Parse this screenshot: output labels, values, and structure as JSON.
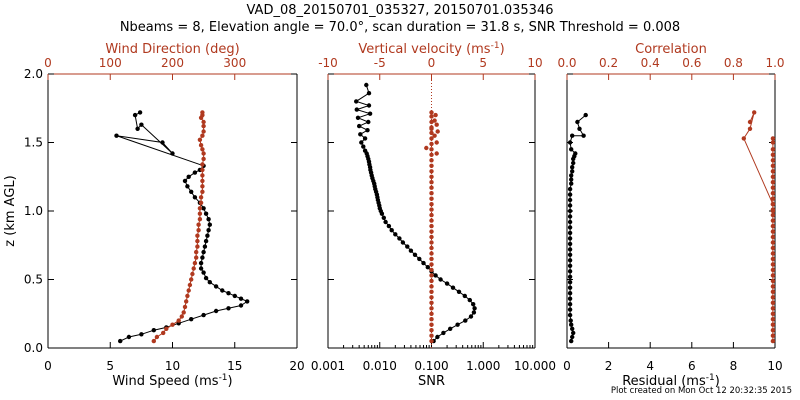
{
  "header": {
    "title": "VAD_08_20150701_035327, 20150701.035346",
    "subtitle": "Nbeams = 8, Elevation angle = 70.0°, scan duration = 31.8 s, SNR Threshold = 0.008"
  },
  "footer": {
    "created": "Plot created on Mon Oct 12 20:32:35 2015"
  },
  "colors": {
    "primary": "#000000",
    "secondary": "#b0391f"
  },
  "chart_data": [
    {
      "type": "scatter",
      "ylabel": "z (km AGL)",
      "ylim": [
        0,
        2
      ],
      "yticks": [
        "0.0",
        "0.5",
        "1.0",
        "1.5",
        "2.0"
      ],
      "bottom_axis": {
        "label": "Wind Speed (ms",
        "label_sup": "-1",
        "label_end": ")",
        "ticks": [
          "0",
          "5",
          "10",
          "15",
          "20"
        ],
        "lim": [
          0,
          20
        ],
        "scale": "linear"
      },
      "top_axis": {
        "label": "Wind Direction (deg)",
        "label_sup": "",
        "label_end": "",
        "ticks": [
          "0",
          "100",
          "200",
          "300"
        ],
        "lim": [
          0,
          400
        ],
        "scale": "linear"
      },
      "series": [
        {
          "axis": "bottom",
          "color": "black",
          "connected": true,
          "x": [
            5.8,
            6.5,
            7.5,
            8.5,
            9.5,
            10.5,
            11.5,
            12.5,
            13.5,
            14.5,
            15.5,
            16,
            15.5,
            15,
            14.5,
            14,
            13.5,
            13,
            12.7,
            12.5,
            12.3,
            12.3,
            12.4,
            12.5,
            12.6,
            12.7,
            12.8,
            12.9,
            13,
            12.9,
            12.7,
            12.5,
            12.2,
            11.8,
            11.5,
            11.2,
            11,
            11.3,
            11.8,
            12.2,
            12.5,
            5.5,
            9.2,
            10,
            7.5,
            7.2,
            7.0,
            7.4
          ],
          "y": [
            0.05,
            0.08,
            0.1,
            0.13,
            0.15,
            0.18,
            0.21,
            0.24,
            0.27,
            0.29,
            0.31,
            0.34,
            0.36,
            0.38,
            0.4,
            0.42,
            0.45,
            0.48,
            0.51,
            0.55,
            0.58,
            0.62,
            0.66,
            0.7,
            0.74,
            0.78,
            0.82,
            0.86,
            0.9,
            0.94,
            0.98,
            1.02,
            1.06,
            1.1,
            1.14,
            1.18,
            1.22,
            1.25,
            1.28,
            1.3,
            1.33,
            1.55,
            1.5,
            1.42,
            1.63,
            1.6,
            1.7,
            1.72
          ]
        },
        {
          "axis": "top",
          "color": "secondary",
          "connected": true,
          "x": [
            170,
            175,
            185,
            190,
            200,
            210,
            215,
            218,
            220,
            222,
            224,
            226,
            228,
            230,
            232,
            234,
            236,
            238,
            238,
            240,
            240,
            240,
            242,
            242,
            244,
            244,
            244,
            246,
            246,
            248,
            248,
            248,
            248,
            248,
            248,
            250,
            250,
            248,
            246,
            244,
            248,
            250,
            250,
            250,
            246,
            248,
            248
          ],
          "y": [
            0.05,
            0.08,
            0.11,
            0.14,
            0.17,
            0.2,
            0.23,
            0.26,
            0.3,
            0.34,
            0.38,
            0.42,
            0.46,
            0.5,
            0.54,
            0.58,
            0.62,
            0.66,
            0.7,
            0.74,
            0.78,
            0.82,
            0.86,
            0.9,
            0.94,
            0.98,
            1.02,
            1.06,
            1.1,
            1.14,
            1.18,
            1.22,
            1.26,
            1.3,
            1.34,
            1.38,
            1.42,
            1.45,
            1.48,
            1.52,
            1.55,
            1.58,
            1.62,
            1.65,
            1.68,
            1.7,
            1.72
          ]
        }
      ]
    },
    {
      "type": "scatter",
      "ylim": [
        0,
        2
      ],
      "bottom_axis": {
        "label": "SNR",
        "label_sup": "",
        "label_end": "",
        "ticks": [
          "0.001",
          "0.010",
          "0.100",
          "1.000",
          "10.000"
        ],
        "lim": [
          0.001,
          10
        ],
        "scale": "log"
      },
      "top_axis": {
        "label": "Vertical velocity (ms",
        "label_sup": "-1",
        "label_end": ")",
        "ticks": [
          "-10",
          "-5",
          "0",
          "5",
          "10"
        ],
        "lim": [
          -10,
          10
        ],
        "scale": "linear",
        "zero_line": true
      },
      "series": [
        {
          "axis": "bottom",
          "color": "black",
          "connected": true,
          "x": [
            0.11,
            0.13,
            0.17,
            0.23,
            0.32,
            0.45,
            0.58,
            0.66,
            0.68,
            0.64,
            0.55,
            0.44,
            0.34,
            0.26,
            0.2,
            0.15,
            0.12,
            0.1,
            0.085,
            0.07,
            0.058,
            0.048,
            0.04,
            0.034,
            0.028,
            0.024,
            0.02,
            0.017,
            0.015,
            0.013,
            0.012,
            0.011,
            0.0105,
            0.01,
            0.0098,
            0.0095,
            0.0092,
            0.009,
            0.0088,
            0.0085,
            0.0082,
            0.008,
            0.0078,
            0.0075,
            0.0072,
            0.007,
            0.0068,
            0.0066,
            0.0065,
            0.0063,
            0.0062,
            0.006,
            0.0058,
            0.0056,
            0.0052,
            0.0048,
            0.0044,
            0.0052,
            0.0042,
            0.0058,
            0.004,
            0.006,
            0.0038,
            0.0065,
            0.0036,
            0.0062,
            0.0035,
            0.0062,
            0.0055
          ],
          "y": [
            0.05,
            0.08,
            0.11,
            0.14,
            0.17,
            0.2,
            0.23,
            0.26,
            0.29,
            0.32,
            0.35,
            0.38,
            0.41,
            0.44,
            0.47,
            0.5,
            0.53,
            0.56,
            0.59,
            0.62,
            0.65,
            0.68,
            0.71,
            0.74,
            0.77,
            0.8,
            0.83,
            0.86,
            0.89,
            0.92,
            0.95,
            0.98,
            1.0,
            1.02,
            1.04,
            1.06,
            1.08,
            1.1,
            1.12,
            1.14,
            1.16,
            1.18,
            1.2,
            1.22,
            1.24,
            1.26,
            1.28,
            1.3,
            1.32,
            1.34,
            1.36,
            1.38,
            1.4,
            1.42,
            1.44,
            1.47,
            1.5,
            1.53,
            1.56,
            1.59,
            1.62,
            1.65,
            1.68,
            1.71,
            1.74,
            1.77,
            1.8,
            1.86,
            1.92
          ]
        },
        {
          "axis": "top",
          "color": "secondary",
          "connected": false,
          "x": [
            0,
            0,
            0,
            0,
            0,
            0,
            0,
            0,
            0,
            0,
            0,
            0,
            0,
            0,
            0,
            0,
            0,
            0,
            0,
            0,
            0,
            0,
            0,
            0,
            0,
            0,
            0,
            0,
            0,
            0,
            0,
            0,
            0,
            0,
            0,
            0,
            0,
            0,
            0,
            0,
            0,
            0,
            0,
            0.5,
            -0.5,
            0.5,
            0.3,
            0,
            0.3,
            0.6,
            0.5,
            0.4
          ],
          "y": [
            0.05,
            0.09,
            0.13,
            0.17,
            0.21,
            0.25,
            0.29,
            0.33,
            0.37,
            0.41,
            0.45,
            0.49,
            0.53,
            0.57,
            0.61,
            0.65,
            0.69,
            0.73,
            0.77,
            0.81,
            0.85,
            0.89,
            0.93,
            0.97,
            1.01,
            1.05,
            1.09,
            1.13,
            1.17,
            1.21,
            1.25,
            1.29,
            1.33,
            1.37,
            1.41,
            1.45,
            1.49,
            1.53,
            1.57,
            1.61,
            1.65,
            1.69,
            1.72,
            1.42,
            1.46,
            1.5,
            1.55,
            1.6,
            1.66,
            1.58,
            1.63,
            1.7
          ]
        }
      ]
    },
    {
      "type": "scatter",
      "ylim": [
        0,
        2
      ],
      "bottom_axis": {
        "label": "Residual (ms",
        "label_sup": "-1",
        "label_end": ")",
        "ticks": [
          "0",
          "2",
          "4",
          "6",
          "8",
          "10"
        ],
        "lim": [
          0,
          10
        ],
        "scale": "linear"
      },
      "top_axis": {
        "label": "Correlation",
        "label_sup": "",
        "label_end": "",
        "ticks": [
          "0.0",
          "0.2",
          "0.4",
          "0.6",
          "0.8",
          "1.0"
        ],
        "lim": [
          0,
          1
        ],
        "scale": "linear"
      },
      "series": [
        {
          "axis": "bottom",
          "color": "black",
          "connected": true,
          "x": [
            0.2,
            0.25,
            0.3,
            0.25,
            0.2,
            0.18,
            0.15,
            0.15,
            0.15,
            0.15,
            0.15,
            0.15,
            0.15,
            0.15,
            0.15,
            0.15,
            0.15,
            0.15,
            0.15,
            0.15,
            0.15,
            0.15,
            0.15,
            0.15,
            0.15,
            0.15,
            0.15,
            0.15,
            0.15,
            0.15,
            0.2,
            0.2,
            0.2,
            0.25,
            0.25,
            0.3,
            0.3,
            0.35,
            0.4,
            0.2,
            0.15,
            0.25,
            0.8,
            0.6,
            0.5,
            0.9
          ],
          "y": [
            0.05,
            0.08,
            0.11,
            0.14,
            0.17,
            0.2,
            0.24,
            0.28,
            0.32,
            0.36,
            0.4,
            0.44,
            0.48,
            0.52,
            0.56,
            0.6,
            0.64,
            0.68,
            0.72,
            0.76,
            0.8,
            0.84,
            0.88,
            0.92,
            0.96,
            1.0,
            1.04,
            1.08,
            1.12,
            1.16,
            1.2,
            1.23,
            1.26,
            1.29,
            1.32,
            1.35,
            1.38,
            1.4,
            1.42,
            1.45,
            1.5,
            1.55,
            1.55,
            1.6,
            1.65,
            1.7
          ]
        },
        {
          "axis": "top",
          "color": "secondary",
          "connected": true,
          "x": [
            0.99,
            0.99,
            0.99,
            0.99,
            0.99,
            0.99,
            0.99,
            0.99,
            0.99,
            0.99,
            0.99,
            0.99,
            0.99,
            0.99,
            0.99,
            0.99,
            0.99,
            0.99,
            0.99,
            0.99,
            0.99,
            0.99,
            0.99,
            0.99,
            0.99,
            0.99,
            0.99,
            0.99,
            0.99,
            0.99,
            0.99,
            0.99,
            0.99,
            0.99,
            0.99,
            0.99,
            0.99,
            0.99,
            0.99,
            0.99,
            0.85,
            0.88,
            0.9,
            0.88
          ],
          "y": [
            0.05,
            0.09,
            0.13,
            0.17,
            0.21,
            0.25,
            0.29,
            0.33,
            0.37,
            0.41,
            0.45,
            0.49,
            0.53,
            0.57,
            0.61,
            0.65,
            0.69,
            0.73,
            0.77,
            0.81,
            0.85,
            0.89,
            0.93,
            0.97,
            1.01,
            1.05,
            1.09,
            1.13,
            1.17,
            1.21,
            1.25,
            1.29,
            1.33,
            1.37,
            1.41,
            1.45,
            1.5,
            1.53,
            1.0,
            1.05,
            1.53,
            1.6,
            1.72,
            1.65
          ]
        }
      ]
    }
  ]
}
